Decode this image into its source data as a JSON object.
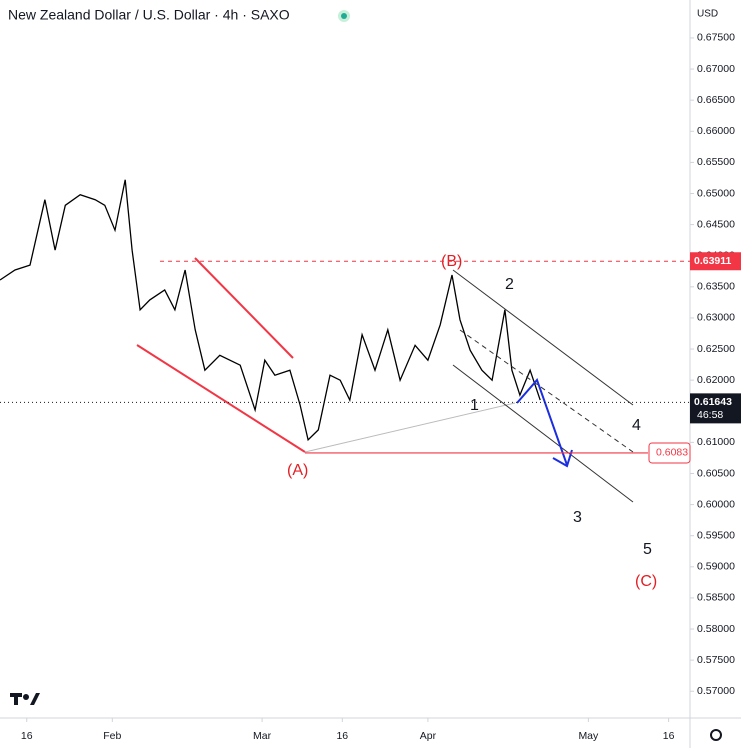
{
  "chart_data": {
    "type": "line",
    "title": "New Zealand Dollar / U.S. Dollar · 4h · SAXO",
    "currency": "USD",
    "color": "#000000",
    "x": [
      11,
      13.8,
      16.6,
      19.4,
      21.3,
      23.2,
      26,
      28.8,
      30.6,
      32.5,
      34.4,
      35.7,
      37.2,
      39,
      41.8,
      43.7,
      45.6,
      47.5,
      49.3,
      52.1,
      55.9,
      58.7,
      60.5,
      62.4,
      65.2,
      67.1,
      68.6,
      70.5,
      72.7,
      74.6,
      76.4,
      78.7,
      81.1,
      83.5,
      85.8,
      88.6,
      91,
      93.3,
      95.5,
      97,
      98.9,
      101.1,
      103,
      105.4,
      106.7,
      108.2,
      110.1,
      112
    ],
    "values": [
      0.6361,
      0.6377,
      0.6385,
      0.649,
      0.6409,
      0.6481,
      0.6498,
      0.649,
      0.6481,
      0.6441,
      0.6522,
      0.6409,
      0.6313,
      0.6329,
      0.6345,
      0.6313,
      0.6377,
      0.6281,
      0.6216,
      0.624,
      0.6224,
      0.6152,
      0.6232,
      0.6208,
      0.6216,
      0.616,
      0.6104,
      0.612,
      0.6208,
      0.62,
      0.6168,
      0.6273,
      0.6216,
      0.6281,
      0.62,
      0.6256,
      0.6232,
      0.6289,
      0.6369,
      0.6297,
      0.6248,
      0.6216,
      0.62,
      0.6313,
      0.6216,
      0.6176,
      0.6216,
      0.6168
    ],
    "xlim": [
      11,
      140
    ],
    "xticks": [
      {
        "value": 16,
        "label": "16"
      },
      {
        "value": 32,
        "label": "Feb"
      },
      {
        "value": 60,
        "label": "Mar"
      },
      {
        "value": 75,
        "label": "16"
      },
      {
        "value": 91,
        "label": "Apr"
      },
      {
        "value": 121,
        "label": "May"
      },
      {
        "value": 136,
        "label": "16"
      }
    ],
    "ylim": [
      0.5657,
      0.6811
    ],
    "yticks": [
      {
        "value": 0.57,
        "label": "0.57000"
      },
      {
        "value": 0.575,
        "label": "0.57500"
      },
      {
        "value": 0.58,
        "label": "0.58000"
      },
      {
        "value": 0.585,
        "label": "0.58500"
      },
      {
        "value": 0.59,
        "label": "0.59000"
      },
      {
        "value": 0.595,
        "label": "0.59500"
      },
      {
        "value": 0.6,
        "label": "0.60000"
      },
      {
        "value": 0.605,
        "label": "0.60500"
      },
      {
        "value": 0.61,
        "label": "0.61000"
      },
      {
        "value": 0.615,
        "label": "0.61500"
      },
      {
        "value": 0.62,
        "label": "0.62000"
      },
      {
        "value": 0.625,
        "label": "0.62500"
      },
      {
        "value": 0.63,
        "label": "0.63000"
      },
      {
        "value": 0.635,
        "label": "0.63500"
      },
      {
        "value": 0.64,
        "label": "0.64000"
      },
      {
        "value": 0.645,
        "label": "0.64500"
      },
      {
        "value": 0.65,
        "label": "0.65000"
      },
      {
        "value": 0.655,
        "label": "0.65500"
      },
      {
        "value": 0.66,
        "label": "0.66000"
      },
      {
        "value": 0.665,
        "label": "0.66500"
      },
      {
        "value": 0.67,
        "label": "0.67000"
      },
      {
        "value": 0.675,
        "label": "0.67500"
      }
    ],
    "resistance": {
      "value": 0.63911,
      "label": "0.63911"
    },
    "support": {
      "value": 0.6083,
      "label": "0.6083"
    },
    "current_price": {
      "value": 0.61643,
      "label": "0.61643"
    },
    "countdown": "46:58",
    "annotations": [
      "(A)",
      "(B)",
      "1",
      "2",
      "3",
      "4",
      "5",
      "(C)"
    ]
  }
}
